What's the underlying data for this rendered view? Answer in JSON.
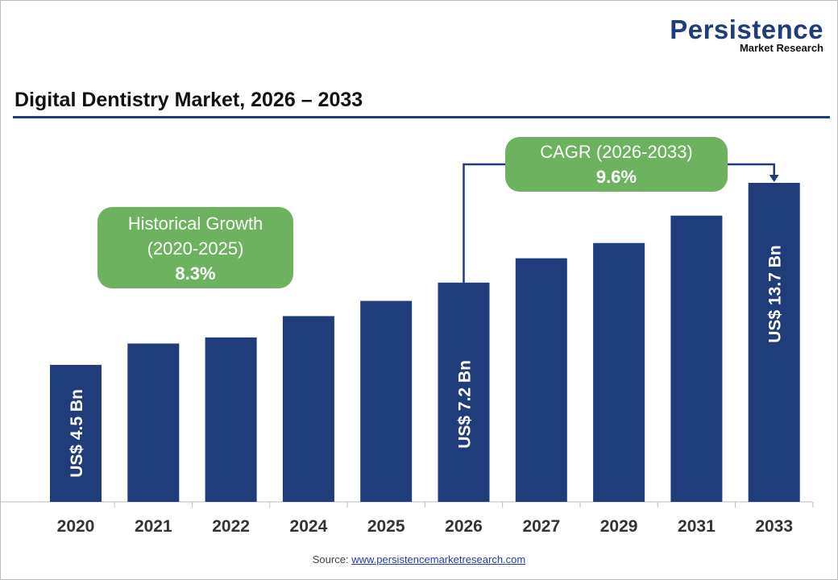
{
  "logo": {
    "name": "Persistence",
    "tagline": "Market Research"
  },
  "title": "Digital Dentistry Market, 2026 – 2033",
  "annotations": {
    "historical": {
      "label1": "Historical Growth",
      "label2": "(2020-2025)",
      "value": "8.3%"
    },
    "cagr": {
      "label": "CAGR (2026-2033)",
      "value": "9.6%"
    }
  },
  "source": {
    "label": "Source:",
    "link": "www.persistencemarketresearch.com"
  },
  "colors": {
    "bar": "#1f3d7a",
    "bubble": "#6db35f",
    "accent": "#1f3d7a"
  },
  "chart_data": {
    "type": "bar",
    "categories": [
      "2020",
      "2021",
      "2022",
      "2024",
      "2025",
      "2026",
      "2027",
      "2029",
      "2031",
      "2033"
    ],
    "values": [
      4.5,
      5.2,
      5.4,
      6.1,
      6.6,
      7.2,
      8.0,
      8.5,
      9.4,
      13.7
    ],
    "unit": "US$ Bn",
    "data_labels": {
      "2020": "US$ 4.5 Bn",
      "2026": "US$ 7.2 Bn",
      "2033": "US$ 13.7 Bn"
    },
    "title": "Digital Dentistry Market, 2026 – 2033",
    "xlabel": "",
    "ylabel": "",
    "grid": false,
    "legend": "none"
  }
}
